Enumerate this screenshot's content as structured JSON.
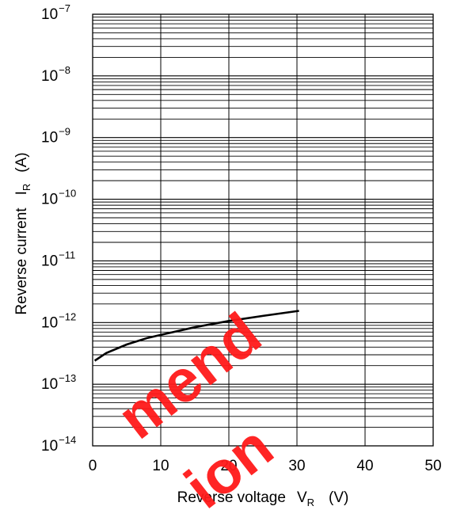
{
  "chart_data": {
    "type": "line",
    "title": "",
    "xlabel": {
      "text": "Reverse voltage",
      "symbol": "V",
      "subscript": "R",
      "unit": "(V)"
    },
    "ylabel": {
      "text": "Reverse current",
      "symbol": "I",
      "subscript": "R",
      "unit": "(A)"
    },
    "xlim": [
      0,
      50
    ],
    "ylim": [
      1e-14,
      1e-07
    ],
    "yscale": "log",
    "grid": true,
    "x_ticks": [
      "0",
      "10",
      "20",
      "30",
      "40",
      "50"
    ],
    "y_ticks": [
      {
        "base": "10",
        "exp": "−14"
      },
      {
        "base": "10",
        "exp": "−13"
      },
      {
        "base": "10",
        "exp": "−12"
      },
      {
        "base": "10",
        "exp": "−11"
      },
      {
        "base": "10",
        "exp": "−10"
      },
      {
        "base": "10",
        "exp": "−9"
      },
      {
        "base": "10",
        "exp": "−8"
      },
      {
        "base": "10",
        "exp": "−7"
      }
    ],
    "series": [
      {
        "x": [
          0.3,
          2,
          5,
          8,
          10,
          15,
          20,
          25,
          30.3
        ],
        "y": [
          2.4e-13,
          3.2e-13,
          4.4e-13,
          5.6e-13,
          6.3e-13,
          8.4e-13,
          1.06e-12,
          1.28e-12,
          1.55e-12
        ]
      }
    ]
  },
  "watermark": {
    "lines": [
      "mend",
      "ion"
    ],
    "color": "#ff1a1a"
  }
}
